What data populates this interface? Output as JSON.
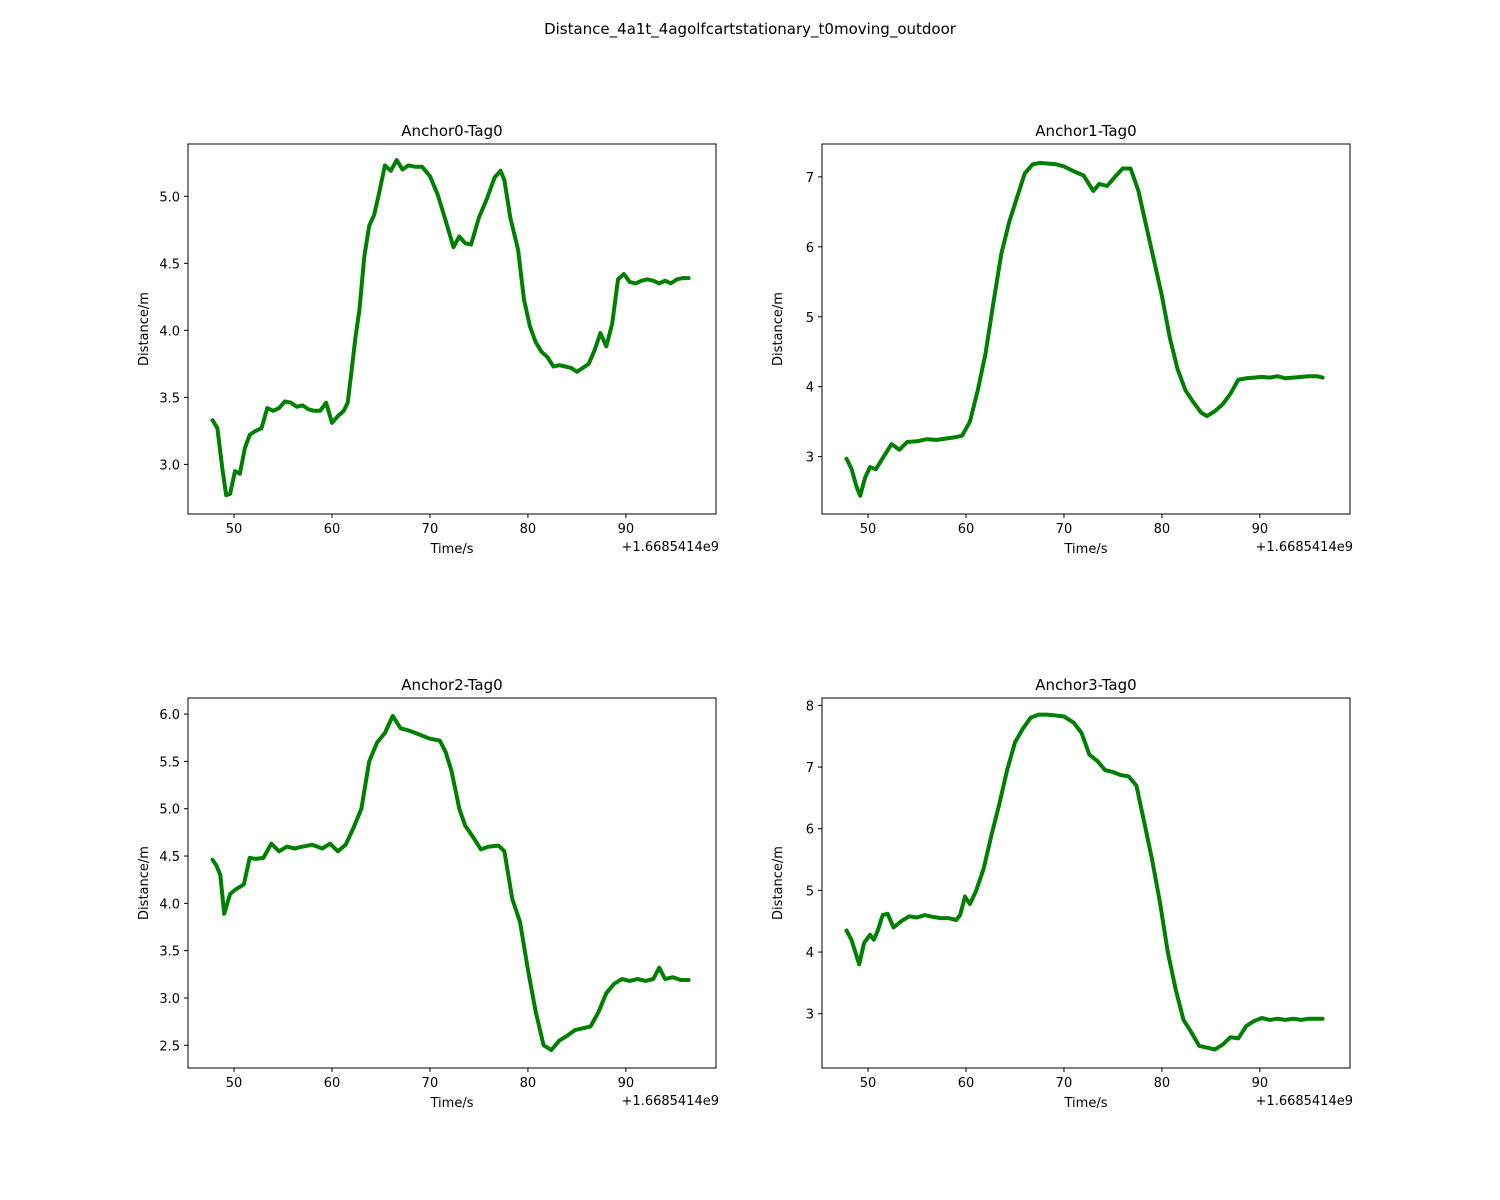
{
  "suptitle": "Distance_4a1t_4agolfcartstationary_t0moving_outdoor",
  "colors": {
    "line": "#008000",
    "axes": "#000000",
    "background": "#ffffff"
  },
  "chart_data": [
    {
      "type": "line",
      "title": "Anchor0-Tag0",
      "xlabel": "Time/s",
      "ylabel": "Distance/m",
      "x_offset_label": "+1.6685414e9",
      "xlim": [
        45.3,
        99.2
      ],
      "ylim": [
        2.63,
        5.39
      ],
      "xticks": [
        50,
        60,
        70,
        80,
        90
      ],
      "yticks": [
        3.0,
        3.5,
        4.0,
        4.5,
        5.0
      ],
      "ytick_labels": [
        "3.0",
        "3.5",
        "4.0",
        "4.5",
        "5.0"
      ],
      "grid": false,
      "x": [
        47.8,
        48.3,
        48.8,
        49.2,
        49.6,
        50.1,
        50.6,
        51.1,
        51.6,
        52.2,
        52.8,
        53.4,
        54.0,
        54.6,
        55.2,
        55.8,
        56.4,
        57.0,
        57.6,
        58.2,
        58.8,
        59.4,
        60.0,
        60.6,
        61.2,
        61.6,
        62.0,
        62.4,
        62.8,
        63.3,
        63.8,
        64.3,
        64.8,
        65.4,
        66.0,
        66.6,
        67.2,
        67.8,
        68.5,
        69.2,
        70.0,
        70.8,
        71.6,
        72.4,
        73.0,
        73.6,
        74.2,
        75.0,
        75.8,
        76.6,
        77.2,
        77.6,
        78.2,
        79.0,
        79.6,
        80.2,
        80.8,
        81.4,
        82.0,
        82.6,
        83.2,
        83.8,
        84.4,
        85.0,
        85.6,
        86.2,
        86.8,
        87.4,
        88.0,
        88.6,
        89.2,
        89.8,
        90.4,
        91.0,
        91.6,
        92.2,
        92.8,
        93.4,
        94.0,
        94.6,
        95.2,
        95.8,
        96.4
      ],
      "y": [
        3.33,
        3.27,
        2.97,
        2.77,
        2.78,
        2.95,
        2.93,
        3.12,
        3.22,
        3.25,
        3.27,
        3.42,
        3.4,
        3.42,
        3.47,
        3.46,
        3.43,
        3.44,
        3.41,
        3.4,
        3.4,
        3.46,
        3.31,
        3.36,
        3.4,
        3.46,
        3.7,
        3.95,
        4.15,
        4.55,
        4.78,
        4.86,
        5.02,
        5.23,
        5.19,
        5.27,
        5.2,
        5.23,
        5.22,
        5.22,
        5.15,
        5.01,
        4.82,
        4.62,
        4.7,
        4.65,
        4.64,
        4.84,
        4.98,
        5.14,
        5.19,
        5.12,
        4.84,
        4.6,
        4.23,
        4.03,
        3.91,
        3.84,
        3.8,
        3.73,
        3.74,
        3.73,
        3.72,
        3.69,
        3.72,
        3.75,
        3.85,
        3.98,
        3.88,
        4.05,
        4.38,
        4.42,
        4.36,
        4.35,
        4.37,
        4.38,
        4.37,
        4.35,
        4.37,
        4.35,
        4.38,
        4.39,
        4.39
      ]
    },
    {
      "type": "line",
      "title": "Anchor1-Tag0",
      "xlabel": "Time/s",
      "ylabel": "Distance/m",
      "x_offset_label": "+1.6685414e9",
      "xlim": [
        45.3,
        99.2
      ],
      "ylim": [
        2.18,
        7.47
      ],
      "xticks": [
        50,
        60,
        70,
        80,
        90
      ],
      "yticks": [
        3,
        4,
        5,
        6,
        7
      ],
      "ytick_labels": [
        "3",
        "4",
        "5",
        "6",
        "7"
      ],
      "grid": false,
      "x": [
        47.8,
        48.3,
        48.8,
        49.2,
        49.7,
        50.2,
        50.8,
        51.6,
        52.4,
        53.2,
        54.0,
        55.0,
        56.0,
        57.0,
        58.0,
        59.0,
        59.6,
        60.4,
        61.2,
        62.0,
        62.8,
        63.6,
        64.4,
        65.2,
        66.0,
        66.8,
        67.6,
        68.4,
        69.2,
        70.0,
        71.0,
        72.0,
        73.0,
        73.6,
        74.4,
        75.2,
        76.0,
        76.8,
        77.6,
        78.4,
        79.2,
        80.0,
        80.8,
        81.6,
        82.4,
        83.2,
        84.0,
        84.6,
        85.4,
        86.2,
        87.0,
        87.8,
        88.6,
        89.4,
        90.2,
        91.0,
        91.8,
        92.6,
        93.4,
        94.2,
        95.0,
        95.8,
        96.4
      ],
      "y": [
        2.97,
        2.83,
        2.58,
        2.44,
        2.7,
        2.85,
        2.82,
        3.0,
        3.18,
        3.1,
        3.21,
        3.22,
        3.25,
        3.24,
        3.26,
        3.28,
        3.3,
        3.5,
        3.95,
        4.48,
        5.2,
        5.9,
        6.35,
        6.7,
        7.05,
        7.18,
        7.2,
        7.19,
        7.18,
        7.15,
        7.08,
        7.02,
        6.8,
        6.9,
        6.87,
        7.0,
        7.12,
        7.12,
        6.8,
        6.3,
        5.8,
        5.3,
        4.7,
        4.25,
        3.95,
        3.78,
        3.63,
        3.58,
        3.65,
        3.75,
        3.9,
        4.1,
        4.12,
        4.13,
        4.14,
        4.13,
        4.15,
        4.12,
        4.13,
        4.14,
        4.15,
        4.15,
        4.13
      ]
    },
    {
      "type": "line",
      "title": "Anchor2-Tag0",
      "xlabel": "Time/s",
      "ylabel": "Distance/m",
      "x_offset_label": "+1.6685414e9",
      "xlim": [
        45.3,
        99.2
      ],
      "ylim": [
        2.26,
        6.17
      ],
      "xticks": [
        50,
        60,
        70,
        80,
        90
      ],
      "yticks": [
        2.5,
        3.0,
        3.5,
        4.0,
        4.5,
        5.0,
        5.5,
        6.0
      ],
      "ytick_labels": [
        "2.5",
        "3.0",
        "3.5",
        "4.0",
        "4.5",
        "5.0",
        "5.5",
        "6.0"
      ],
      "grid": false,
      "x": [
        47.8,
        48.2,
        48.6,
        49.0,
        49.6,
        50.2,
        51.0,
        51.6,
        52.2,
        53.0,
        53.8,
        54.6,
        55.4,
        56.2,
        57.0,
        58.0,
        59.0,
        59.8,
        60.6,
        61.4,
        62.2,
        63.0,
        63.8,
        64.6,
        65.4,
        66.2,
        67.0,
        68.0,
        69.0,
        70.0,
        71.0,
        71.6,
        72.2,
        73.0,
        73.6,
        74.4,
        75.2,
        76.0,
        77.0,
        77.6,
        78.4,
        79.2,
        80.0,
        80.8,
        81.6,
        82.4,
        83.2,
        84.0,
        84.8,
        85.6,
        86.4,
        87.2,
        88.0,
        88.8,
        89.6,
        90.4,
        91.2,
        92.0,
        92.8,
        93.4,
        94.0,
        94.8,
        95.6,
        96.4
      ],
      "y": [
        4.46,
        4.4,
        4.3,
        3.89,
        4.1,
        4.15,
        4.2,
        4.48,
        4.47,
        4.48,
        4.63,
        4.55,
        4.6,
        4.58,
        4.6,
        4.62,
        4.58,
        4.63,
        4.55,
        4.62,
        4.8,
        5.0,
        5.5,
        5.7,
        5.8,
        5.98,
        5.85,
        5.82,
        5.78,
        5.74,
        5.72,
        5.6,
        5.4,
        5.0,
        4.82,
        4.7,
        4.57,
        4.6,
        4.61,
        4.55,
        4.05,
        3.8,
        3.3,
        2.85,
        2.5,
        2.45,
        2.55,
        2.6,
        2.66,
        2.68,
        2.7,
        2.85,
        3.05,
        3.15,
        3.2,
        3.18,
        3.2,
        3.18,
        3.2,
        3.32,
        3.2,
        3.22,
        3.19,
        3.19
      ]
    },
    {
      "type": "line",
      "title": "Anchor3-Tag0",
      "xlabel": "Time/s",
      "ylabel": "Distance/m",
      "x_offset_label": "+1.6685414e9",
      "xlim": [
        45.3,
        99.2
      ],
      "ylim": [
        2.12,
        8.12
      ],
      "xticks": [
        50,
        60,
        70,
        80,
        90
      ],
      "yticks": [
        3,
        4,
        5,
        6,
        7,
        8
      ],
      "ytick_labels": [
        "3",
        "4",
        "5",
        "6",
        "7",
        "8"
      ],
      "grid": false,
      "x": [
        47.8,
        48.3,
        48.8,
        49.1,
        49.6,
        50.2,
        50.6,
        51.0,
        51.5,
        52.0,
        52.6,
        53.4,
        54.2,
        55.0,
        55.8,
        56.6,
        57.4,
        58.2,
        59.0,
        59.4,
        59.9,
        60.4,
        61.0,
        61.8,
        62.6,
        63.4,
        64.2,
        65.0,
        65.8,
        66.6,
        67.4,
        68.2,
        69.0,
        70.0,
        71.0,
        71.8,
        72.6,
        73.4,
        74.2,
        75.0,
        75.8,
        76.6,
        77.4,
        78.2,
        79.0,
        79.8,
        80.6,
        81.4,
        82.2,
        83.0,
        83.8,
        84.6,
        85.4,
        86.2,
        87.0,
        87.8,
        88.6,
        89.4,
        90.2,
        91.0,
        91.8,
        92.6,
        93.4,
        94.2,
        95.0,
        95.8,
        96.4
      ],
      "y": [
        4.35,
        4.2,
        3.95,
        3.8,
        4.15,
        4.28,
        4.2,
        4.35,
        4.6,
        4.62,
        4.4,
        4.5,
        4.58,
        4.56,
        4.6,
        4.57,
        4.55,
        4.55,
        4.52,
        4.6,
        4.9,
        4.78,
        4.98,
        5.35,
        5.9,
        6.4,
        6.95,
        7.4,
        7.62,
        7.8,
        7.85,
        7.85,
        7.84,
        7.82,
        7.72,
        7.55,
        7.2,
        7.1,
        6.95,
        6.92,
        6.87,
        6.85,
        6.7,
        6.1,
        5.5,
        4.8,
        4.0,
        3.4,
        2.9,
        2.7,
        2.48,
        2.45,
        2.42,
        2.5,
        2.62,
        2.6,
        2.8,
        2.88,
        2.93,
        2.9,
        2.92,
        2.9,
        2.92,
        2.9,
        2.92,
        2.92,
        2.92
      ]
    }
  ]
}
